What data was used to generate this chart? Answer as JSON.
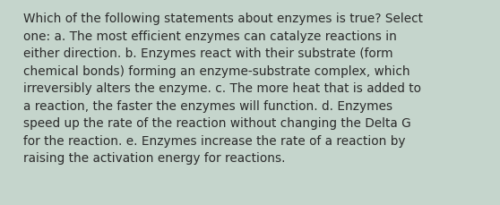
{
  "lines": [
    "Which of the following statements about enzymes is true? Select",
    "one: a. The most efficient enzymes can catalyze reactions in",
    "either direction. b. Enzymes react with their substrate (form",
    "chemical bonds) forming an enzyme-substrate complex, which",
    "irreversibly alters the enzyme. c. The more heat that is added to",
    "a reaction, the faster the enzymes will function. d. Enzymes",
    "speed up the rate of the reaction without changing the Delta G",
    "for the reaction. e. Enzymes increase the rate of a reaction by",
    "raising the activation energy for reactions."
  ],
  "background_color": "#c5d5cc",
  "text_color": "#2b2b2b",
  "font_size": 9.8,
  "font_family": "DejaVu Sans",
  "fig_width": 5.58,
  "fig_height": 2.3,
  "dpi": 100
}
